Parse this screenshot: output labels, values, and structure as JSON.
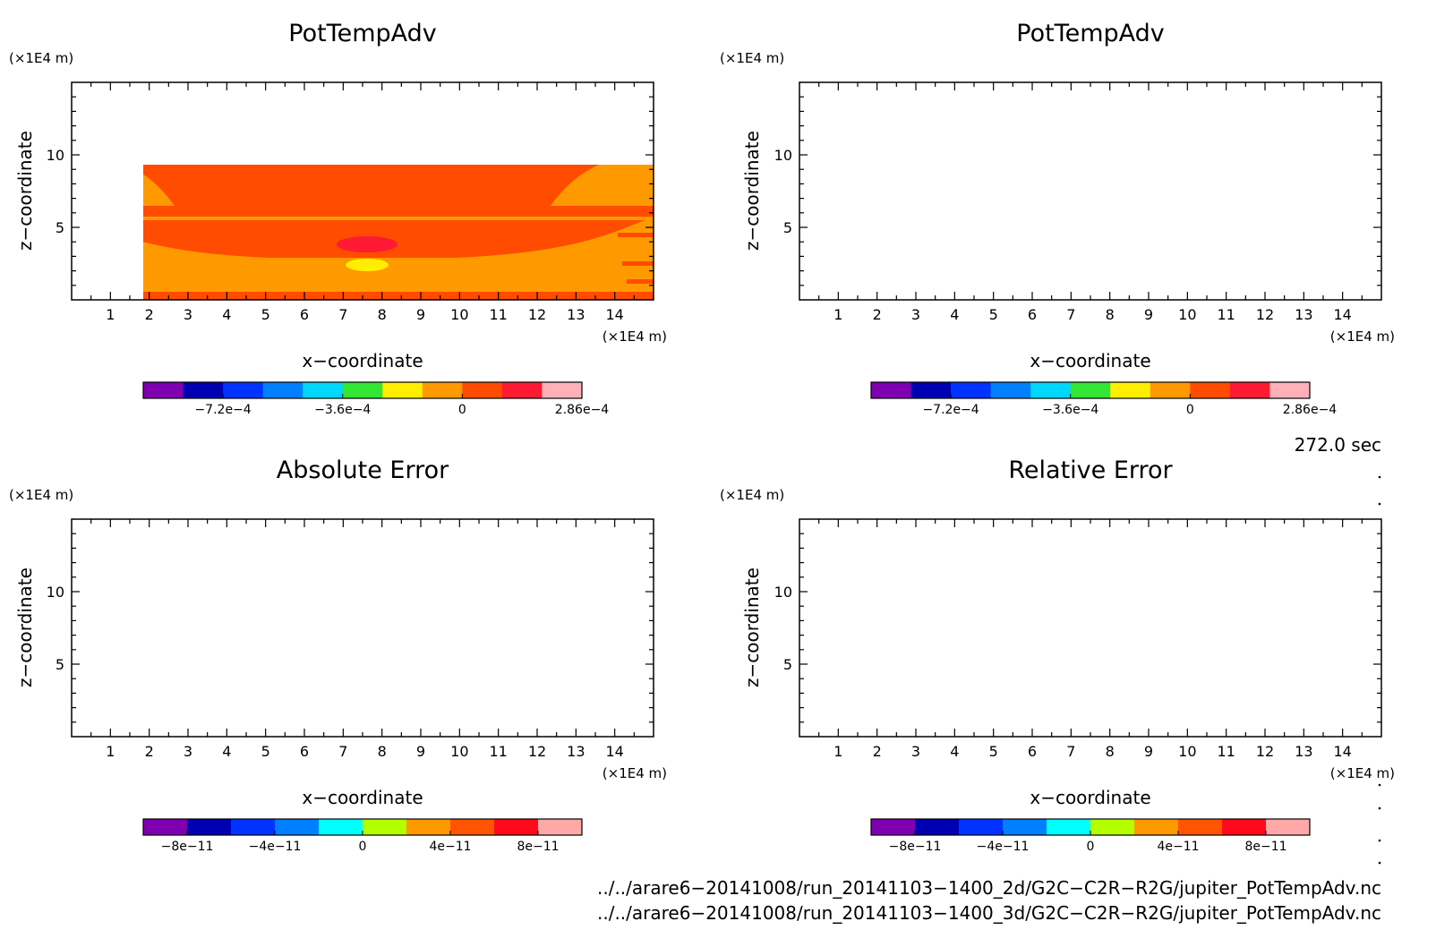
{
  "chart_data": [
    {
      "type": "heatmap",
      "title": "PotTempAdv",
      "xlabel": "x−coordinate",
      "ylabel": "z−coordinate",
      "x_scale": "(×1E4 m)",
      "y_scale": "(×1E4 m)",
      "xlim": [
        0,
        15
      ],
      "ylim": [
        0,
        15
      ],
      "x_ticks": [
        "1",
        "2",
        "3",
        "4",
        "5",
        "6",
        "7",
        "8",
        "9",
        "10",
        "11",
        "12",
        "13",
        "14"
      ],
      "y_ticks": [
        "5",
        "10"
      ],
      "colorbar": {
        "colors": [
          "#7f00b0",
          "#0000b3",
          "#0033ff",
          "#007fff",
          "#00d7ff",
          "#33e633",
          "#ffee00",
          "#ff9900",
          "#ff4c00",
          "#ff1a33",
          "#ffb0b8"
        ],
        "tick_labels": [
          "−7.2e−4",
          "−3.6e−4",
          "0",
          "2.86e−4"
        ]
      },
      "fields": {
        "min": -0.00092,
        "max": 0.000286
      }
    },
    {
      "type": "heatmap",
      "title": "PotTempAdv",
      "xlabel": "x−coordinate",
      "ylabel": "z−coordinate",
      "x_scale": "(×1E4 m)",
      "y_scale": "(×1E4 m)",
      "xlim": [
        0,
        15
      ],
      "ylim": [
        0,
        15
      ],
      "x_ticks": [
        "1",
        "2",
        "3",
        "4",
        "5",
        "6",
        "7",
        "8",
        "9",
        "10",
        "11",
        "12",
        "13",
        "14"
      ],
      "y_ticks": [
        "5",
        "10"
      ],
      "colorbar": {
        "colors": [
          "#7f00b0",
          "#0000b3",
          "#0033ff",
          "#007fff",
          "#00d7ff",
          "#33e633",
          "#ffee00",
          "#ff9900",
          "#ff4c00",
          "#ff1a33",
          "#ffb0b8"
        ],
        "tick_labels": [
          "−7.2e−4",
          "−3.6e−4",
          "0",
          "2.86e−4"
        ]
      },
      "fields": {
        "min": -0.00092,
        "max": 0.000286
      }
    },
    {
      "type": "heatmap",
      "title": "Absolute Error",
      "xlabel": "x−coordinate",
      "ylabel": "z−coordinate",
      "x_scale": "(×1E4 m)",
      "y_scale": "(×1E4 m)",
      "xlim": [
        0,
        15
      ],
      "ylim": [
        0,
        15
      ],
      "x_ticks": [
        "1",
        "2",
        "3",
        "4",
        "5",
        "6",
        "7",
        "8",
        "9",
        "10",
        "11",
        "12",
        "13",
        "14"
      ],
      "y_ticks": [
        "5",
        "10"
      ],
      "colorbar": {
        "colors": [
          "#7f00b0",
          "#0000b3",
          "#0033ff",
          "#0080ff",
          "#00ffff",
          "#b3ff00",
          "#ff9900",
          "#ff5500",
          "#ff0a1a",
          "#ffa8a8"
        ],
        "tick_labels": [
          "−8e−11",
          "−4e−11",
          "0",
          "4e−11",
          "8e−11"
        ]
      },
      "fields": {
        "value": 0
      }
    },
    {
      "type": "heatmap",
      "title": "Relative Error",
      "xlabel": "x−coordinate",
      "ylabel": "z−coordinate",
      "x_scale": "(×1E4 m)",
      "y_scale": "(×1E4 m)",
      "xlim": [
        0,
        15
      ],
      "ylim": [
        0,
        15
      ],
      "x_ticks": [
        "1",
        "2",
        "3",
        "4",
        "5",
        "6",
        "7",
        "8",
        "9",
        "10",
        "11",
        "12",
        "13",
        "14"
      ],
      "y_ticks": [
        "5",
        "10"
      ],
      "colorbar": {
        "colors": [
          "#7f00b0",
          "#0000b3",
          "#0033ff",
          "#0080ff",
          "#00ffff",
          "#b3ff00",
          "#ff9900",
          "#ff5500",
          "#ff0a1a",
          "#ffa8a8"
        ],
        "tick_labels": [
          "−8e−11",
          "−4e−11",
          "0",
          "4e−11",
          "8e−11"
        ]
      },
      "fields": {
        "value": 0
      }
    }
  ],
  "time_label": "272.0 sec",
  "files": [
    "../../arare6−20141008/run_20141103−1400_2d/G2C−C2R−R2G/jupiter_PotTempAdv.nc",
    "../../arare6−20141008/run_20141103−1400_3d/G2C−C2R−R2G/jupiter_PotTempAdv.nc"
  ]
}
